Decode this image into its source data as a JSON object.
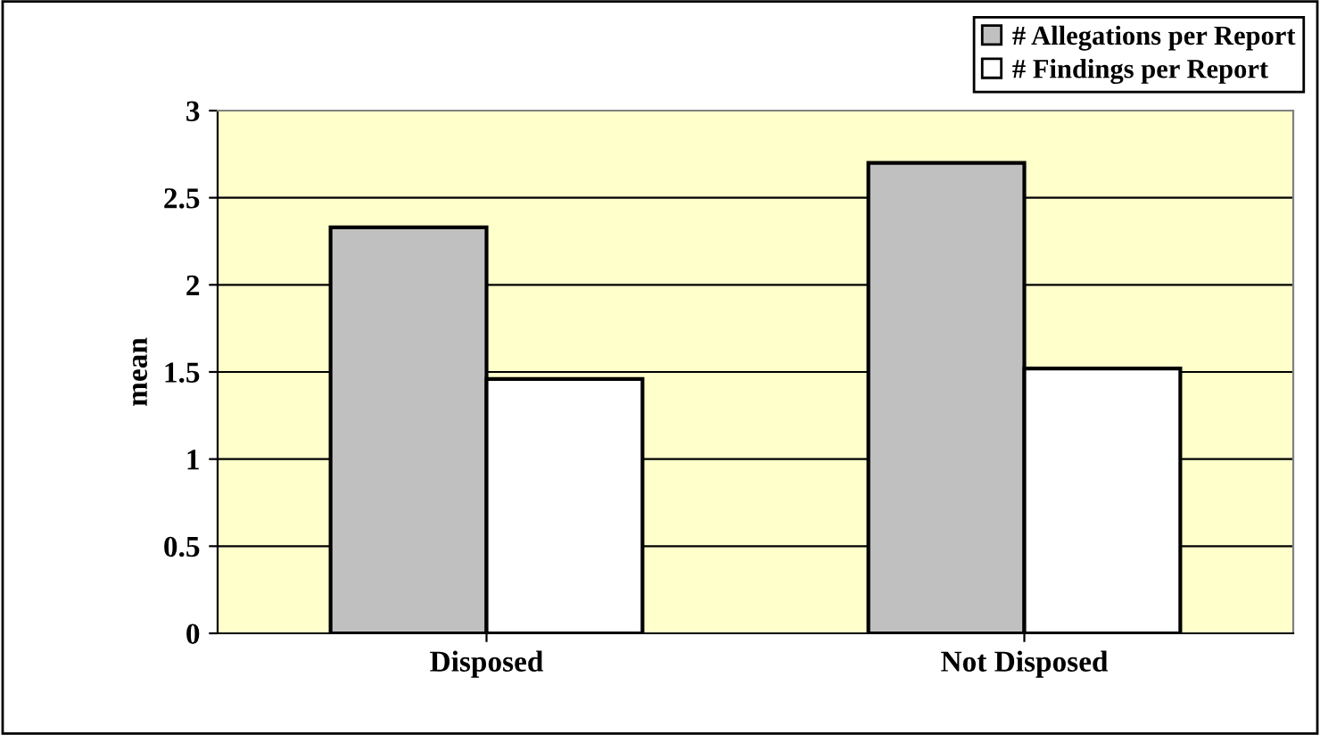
{
  "chart_data": {
    "type": "bar",
    "ylabel": "mean",
    "categories": [
      "Disposed",
      "Not Disposed"
    ],
    "series": [
      {
        "name": "# Allegations per Report",
        "color": "#c0c0c0",
        "values": [
          2.33,
          2.7
        ]
      },
      {
        "name": "# Findings per Report",
        "color": "#ffffff",
        "values": [
          1.46,
          1.52
        ]
      }
    ],
    "ylim": [
      0,
      3
    ],
    "yticks": [
      0,
      0.5,
      1,
      1.5,
      2,
      2.5,
      3
    ],
    "grid": "y",
    "legend": "top right"
  }
}
